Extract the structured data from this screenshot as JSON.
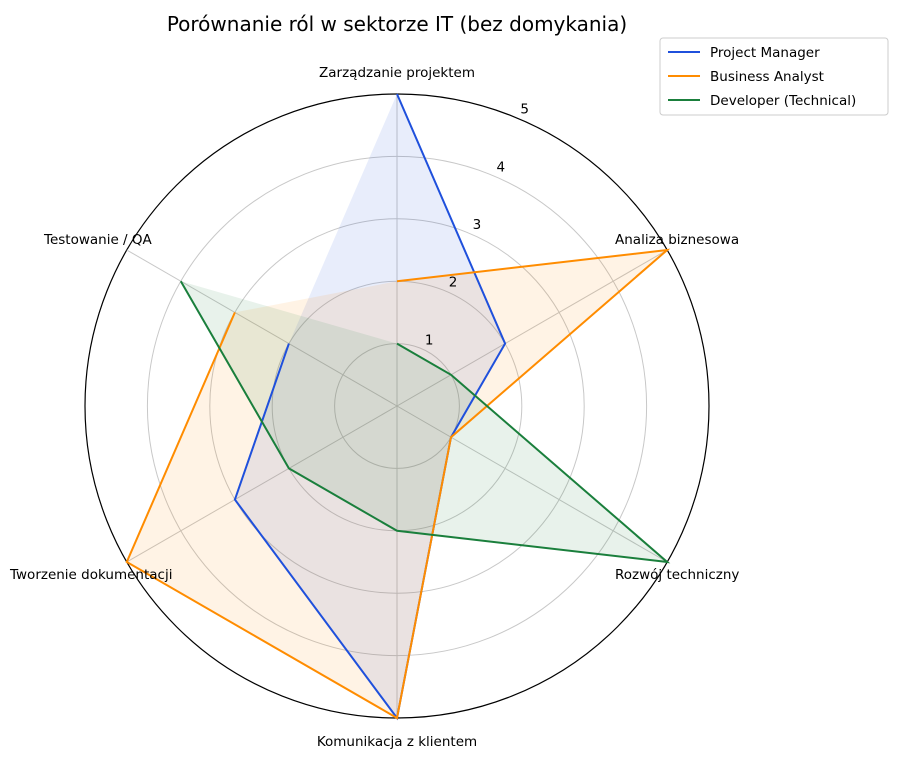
{
  "chart_data": {
    "type": "radar",
    "title": "Porównanie ról w sektorze IT (bez domykania)",
    "axes": [
      "Zarządzanie projektem",
      "Analiza biznesowa",
      "Rozwój techniczny",
      "Komunikacja z klientem",
      "Tworzenie dokumentacji",
      "Testowanie / QA"
    ],
    "rlim": [
      0,
      5
    ],
    "rticks": [
      1,
      2,
      3,
      4,
      5
    ],
    "grid": true,
    "legend_position": "top-right",
    "series": [
      {
        "name": "Project Manager",
        "color": "#1f50dc",
        "values": [
          5,
          2,
          1,
          5,
          3,
          2
        ]
      },
      {
        "name": "Business Analyst",
        "color": "#ff8c00",
        "values": [
          2,
          5,
          1,
          5,
          5,
          3
        ]
      },
      {
        "name": "Developer (Technical)",
        "color": "#1a7f3c",
        "values": [
          1,
          1,
          5,
          2,
          2,
          4
        ]
      }
    ]
  }
}
